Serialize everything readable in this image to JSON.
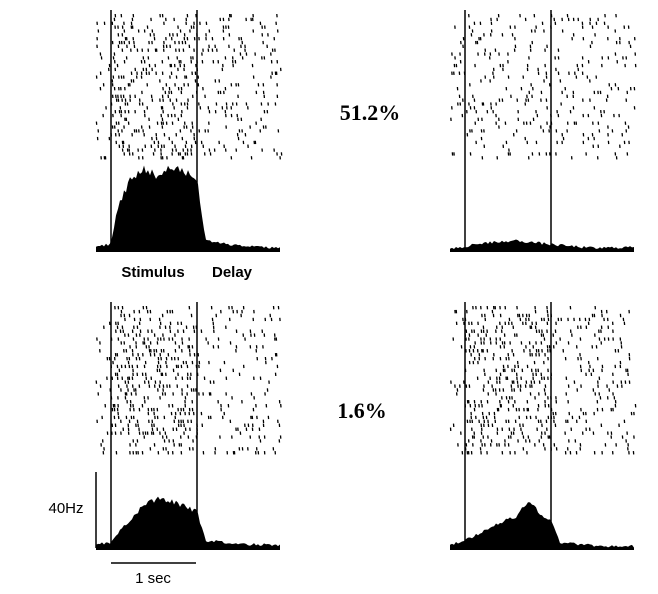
{
  "chart_data": {
    "type": "raster-psth",
    "coherence_labels": [
      "51.2%",
      "1.6%"
    ],
    "epoch_labels": {
      "stimulus": "Stimulus",
      "delay": "Delay"
    },
    "scale_bars": {
      "rate": "40Hz",
      "time": "1 sec"
    },
    "rate_scale_hz": 40,
    "trial_duration_s": 3.1,
    "stimulus_window_s": [
      0.0,
      1.0
    ],
    "delay_window_s": [
      1.0,
      3.1
    ],
    "panels": [
      {
        "row": 1,
        "column": "left",
        "coherence": "51.2%",
        "stimulus_density": 0.9,
        "delay_density": 0.45,
        "baseline_density": 0.35,
        "psth_rate_hz": [
          {
            "t": -0.15,
            "r": 3
          },
          {
            "t": 0.0,
            "r": 4
          },
          {
            "t": 0.08,
            "r": 24
          },
          {
            "t": 0.25,
            "r": 40
          },
          {
            "t": 0.4,
            "r": 44
          },
          {
            "t": 0.55,
            "r": 40
          },
          {
            "t": 0.7,
            "r": 46
          },
          {
            "t": 0.85,
            "r": 42
          },
          {
            "t": 1.0,
            "r": 38
          },
          {
            "t": 1.1,
            "r": 6
          },
          {
            "t": 1.4,
            "r": 4
          },
          {
            "t": 2.0,
            "r": 2
          },
          {
            "t": 2.8,
            "r": 2
          }
        ]
      },
      {
        "row": 1,
        "column": "right",
        "coherence": "51.2%",
        "stimulus_density": 0.4,
        "delay_density": 0.4,
        "baseline_density": 0.4,
        "psth_rate_hz": [
          {
            "t": -0.15,
            "r": 2
          },
          {
            "t": 0.0,
            "r": 3
          },
          {
            "t": 0.3,
            "r": 5
          },
          {
            "t": 0.6,
            "r": 6
          },
          {
            "t": 1.0,
            "r": 4
          },
          {
            "t": 1.5,
            "r": 2
          },
          {
            "t": 2.2,
            "r": 3
          },
          {
            "t": 2.8,
            "r": 2
          }
        ]
      },
      {
        "row": 2,
        "column": "left",
        "coherence": "1.6%",
        "stimulus_density": 0.85,
        "delay_density": 0.45,
        "baseline_density": 0.35,
        "psth_rate_hz": [
          {
            "t": -0.15,
            "r": 3
          },
          {
            "t": 0.0,
            "r": 4
          },
          {
            "t": 0.1,
            "r": 10
          },
          {
            "t": 0.35,
            "r": 22
          },
          {
            "t": 0.55,
            "r": 28
          },
          {
            "t": 0.8,
            "r": 24
          },
          {
            "t": 1.0,
            "r": 20
          },
          {
            "t": 1.1,
            "r": 5
          },
          {
            "t": 1.6,
            "r": 3
          },
          {
            "t": 2.8,
            "r": 2
          }
        ]
      },
      {
        "row": 2,
        "column": "right",
        "coherence": "1.6%",
        "stimulus_density": 0.95,
        "delay_density": 0.45,
        "baseline_density": 0.4,
        "psth_rate_hz": [
          {
            "t": -0.15,
            "r": 3
          },
          {
            "t": 0.0,
            "r": 5
          },
          {
            "t": 0.3,
            "r": 12
          },
          {
            "t": 0.6,
            "r": 18
          },
          {
            "t": 0.75,
            "r": 26
          },
          {
            "t": 0.9,
            "r": 18
          },
          {
            "t": 1.0,
            "r": 16
          },
          {
            "t": 1.1,
            "r": 4
          },
          {
            "t": 1.6,
            "r": 2
          },
          {
            "t": 2.8,
            "r": 2
          }
        ]
      }
    ]
  }
}
